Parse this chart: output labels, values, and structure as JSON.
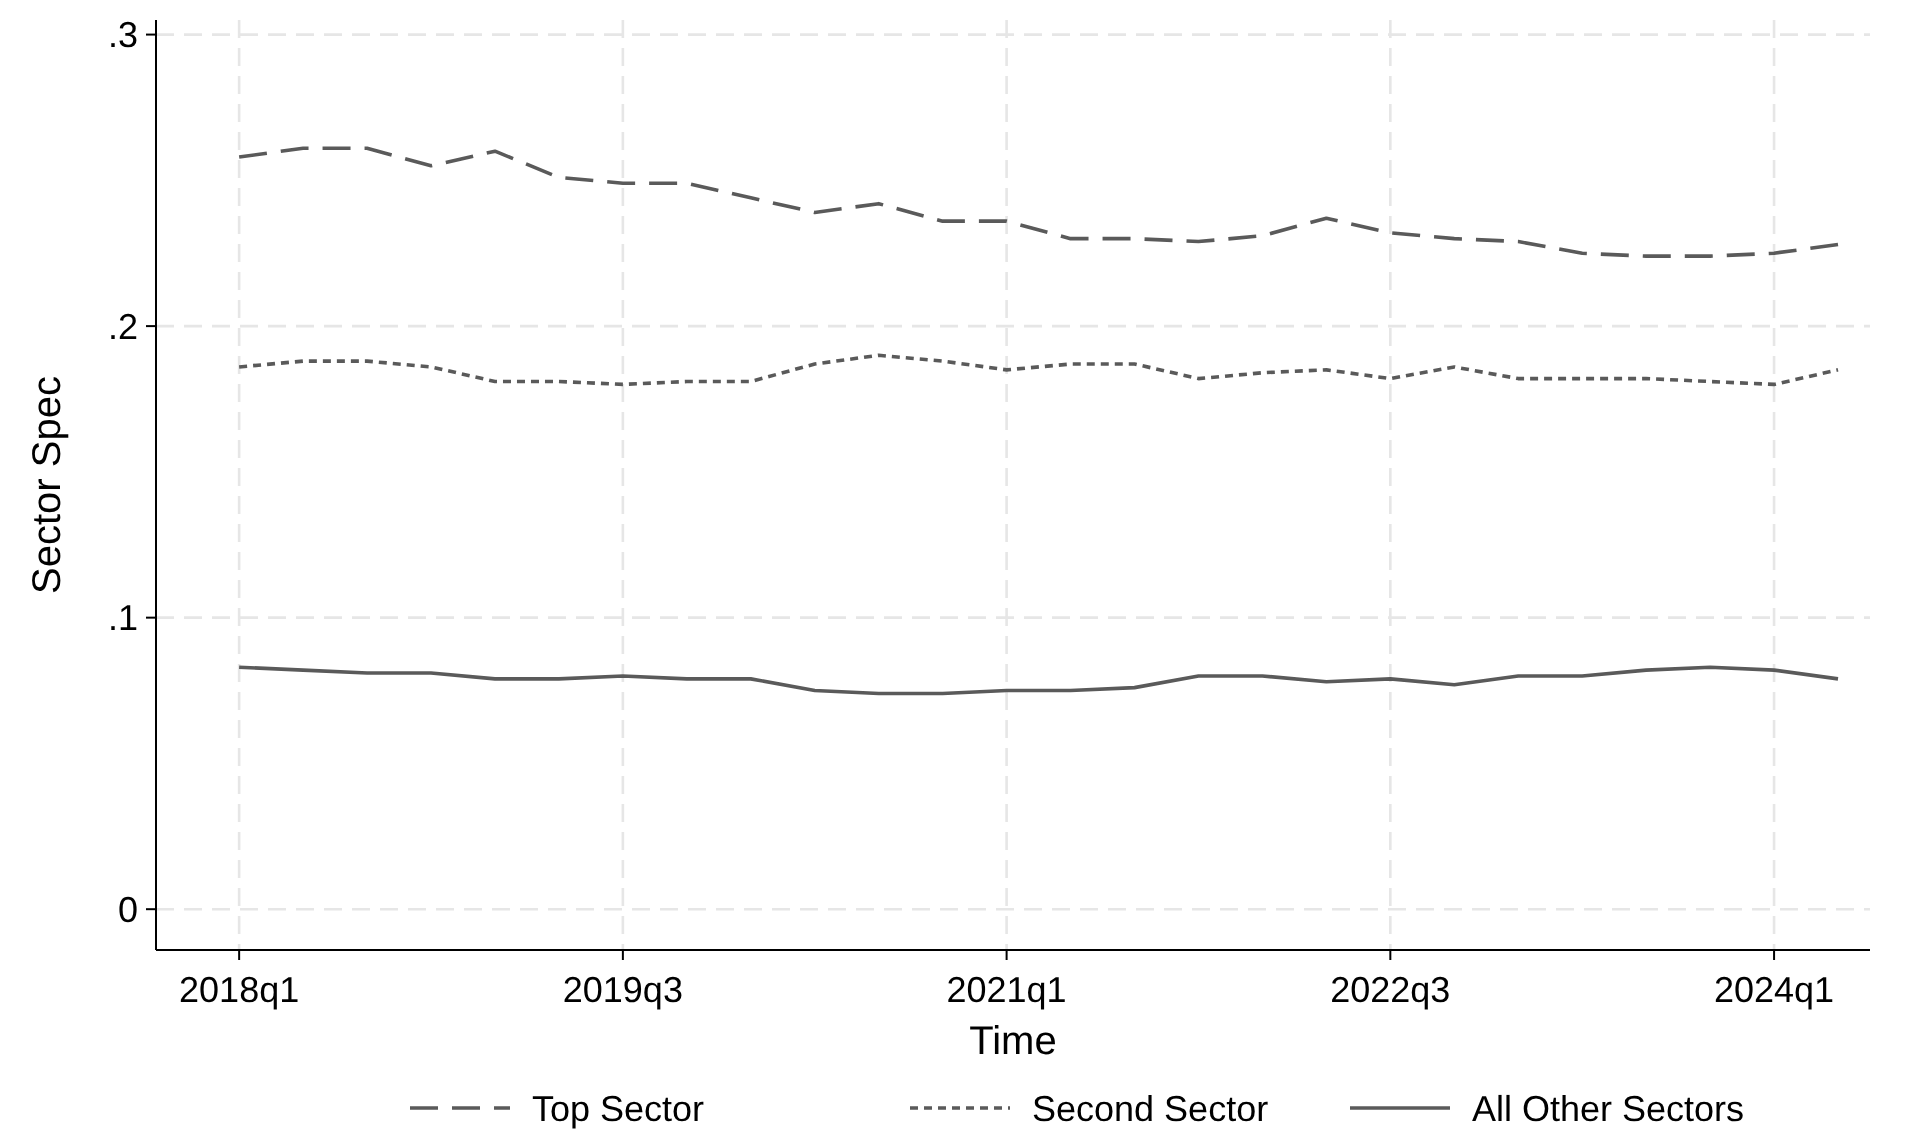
{
  "chart_data": {
    "type": "line",
    "xlabel": "Time",
    "ylabel": "Sector Spec",
    "categories": [
      "2018q1",
      null,
      null,
      null,
      null,
      null,
      "2019q3",
      null,
      null,
      null,
      null,
      null,
      "2021q1",
      null,
      null,
      null,
      null,
      null,
      "2022q3",
      null,
      null,
      null,
      null,
      null,
      "2024q1",
      null
    ],
    "ylim": [
      -0.014,
      0.305
    ],
    "yticks": [
      {
        "value": 0,
        "label": "0"
      },
      {
        "value": 0.1,
        "label": ".1"
      },
      {
        "value": 0.2,
        "label": ".2"
      },
      {
        "value": 0.3,
        "label": ".3"
      }
    ],
    "grid": true,
    "legend": "bottom",
    "marker": "none",
    "series": [
      {
        "name": "Top Sector",
        "color": "#5a5a5a",
        "line_style": "dashed",
        "values": [
          0.258,
          0.261,
          0.261,
          0.255,
          0.26,
          0.251,
          0.249,
          0.249,
          0.244,
          0.239,
          0.242,
          0.236,
          0.236,
          0.23,
          0.23,
          0.229,
          0.231,
          0.237,
          0.232,
          0.23,
          0.229,
          0.225,
          0.224,
          0.224,
          0.225,
          0.228
        ]
      },
      {
        "name": "Second Sector",
        "color": "#5a5a5a",
        "line_style": "dotted",
        "values": [
          0.186,
          0.188,
          0.188,
          0.186,
          0.181,
          0.181,
          0.18,
          0.181,
          0.181,
          0.187,
          0.19,
          0.188,
          0.185,
          0.187,
          0.187,
          0.182,
          0.184,
          0.185,
          0.182,
          0.186,
          0.182,
          0.182,
          0.182,
          0.181,
          0.18,
          0.185
        ]
      },
      {
        "name": "All Other Sectors",
        "color": "#5a5a5a",
        "line_style": "solid",
        "values": [
          0.083,
          0.082,
          0.081,
          0.081,
          0.079,
          0.079,
          0.08,
          0.079,
          0.079,
          0.075,
          0.074,
          0.074,
          0.075,
          0.075,
          0.076,
          0.08,
          0.08,
          0.078,
          0.079,
          0.077,
          0.08,
          0.08,
          0.082,
          0.083,
          0.082,
          0.079
        ]
      }
    ]
  }
}
